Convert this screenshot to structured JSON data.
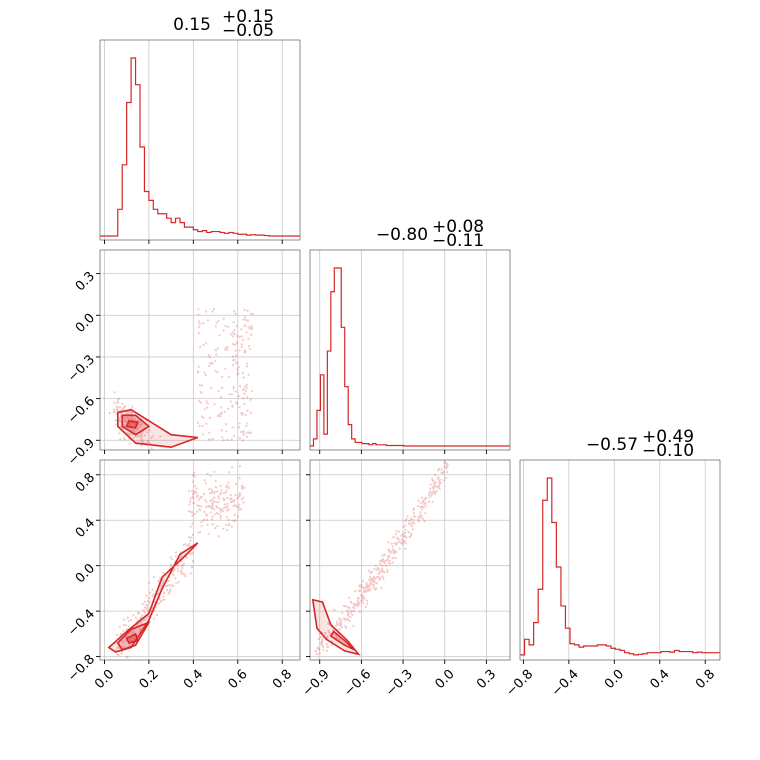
{
  "chart_data": {
    "type": "corner",
    "color": "#d62728",
    "parameters": [
      {
        "title_main": "0.15",
        "title_plus": "+0.15",
        "title_minus": "−0.05",
        "range": [
          -0.02,
          0.88
        ]
      },
      {
        "title_main": "−0.80",
        "title_plus": "+0.08",
        "title_minus": "−0.11",
        "range": [
          -0.97,
          0.47
        ]
      },
      {
        "title_main": "−0.57",
        "title_plus": "+0.49",
        "title_minus": "−0.10",
        "range": [
          -0.83,
          0.93
        ]
      }
    ],
    "ticks": [
      {
        "values": [
          0.0,
          0.2,
          0.4,
          0.6,
          0.8
        ],
        "labels": [
          "0.0",
          "0.2",
          "0.4",
          "0.6",
          "0.8"
        ]
      },
      {
        "values": [
          -0.9,
          -0.6,
          -0.3,
          0.0,
          0.3
        ],
        "labels": [
          "−0.9",
          "−0.6",
          "−0.3",
          "0.0",
          "0.3"
        ]
      },
      {
        "values": [
          -0.8,
          -0.4,
          0.0,
          0.4,
          0.8
        ],
        "labels": [
          "−0.8",
          "−0.4",
          "0.0",
          "0.4",
          "0.8"
        ]
      }
    ],
    "histograms": [
      {
        "bin_start": -0.02,
        "bin_width": 0.02,
        "counts": [
          0,
          0,
          0,
          0,
          3,
          8,
          15,
          20,
          17,
          10,
          5,
          4,
          3,
          2.5,
          2.5,
          2,
          1.5,
          2,
          1.5,
          1,
          1,
          0.7,
          0.5,
          0.6,
          0.4,
          0.5,
          0.5,
          0.4,
          0.3,
          0.4,
          0.3,
          0.2,
          0.2,
          0.1,
          0.15,
          0.1,
          0.1,
          0.05,
          0,
          0,
          0,
          0,
          0,
          0,
          0
        ]
      },
      {
        "bin_start": -0.97,
        "bin_width": 0.025,
        "counts": [
          0,
          0.3,
          1.5,
          3,
          0.5,
          4,
          6.5,
          7.5,
          7.5,
          5,
          2.5,
          0.9,
          0.3,
          0.15,
          0.15,
          0.1,
          0.1,
          0.05,
          0.1,
          0.05,
          0.05,
          0.05,
          0.02,
          0.02,
          0.02,
          0.02,
          0.02,
          0,
          0,
          0,
          0,
          0,
          0,
          0,
          0,
          0,
          0,
          0,
          0,
          0,
          0,
          0,
          0,
          0,
          0,
          0,
          0,
          0,
          0,
          0,
          0,
          0,
          0,
          0,
          0,
          0,
          0,
          0
        ]
      },
      {
        "bin_start": -0.83,
        "bin_width": 0.04,
        "counts": [
          0.1,
          1.5,
          1,
          3,
          6,
          14,
          16,
          12,
          8,
          4.5,
          2.5,
          1.1,
          1,
          0.8,
          0.9,
          0.9,
          0.9,
          1,
          1,
          0.9,
          0.7,
          0.6,
          0.5,
          0.3,
          0.2,
          0.1,
          0.15,
          0.2,
          0.3,
          0.3,
          0.3,
          0.4,
          0.4,
          0.35,
          0.5,
          0.4,
          0.4,
          0.4,
          0.3,
          0.35,
          0.3,
          0.3,
          0.3,
          0.3
        ]
      }
    ]
  }
}
